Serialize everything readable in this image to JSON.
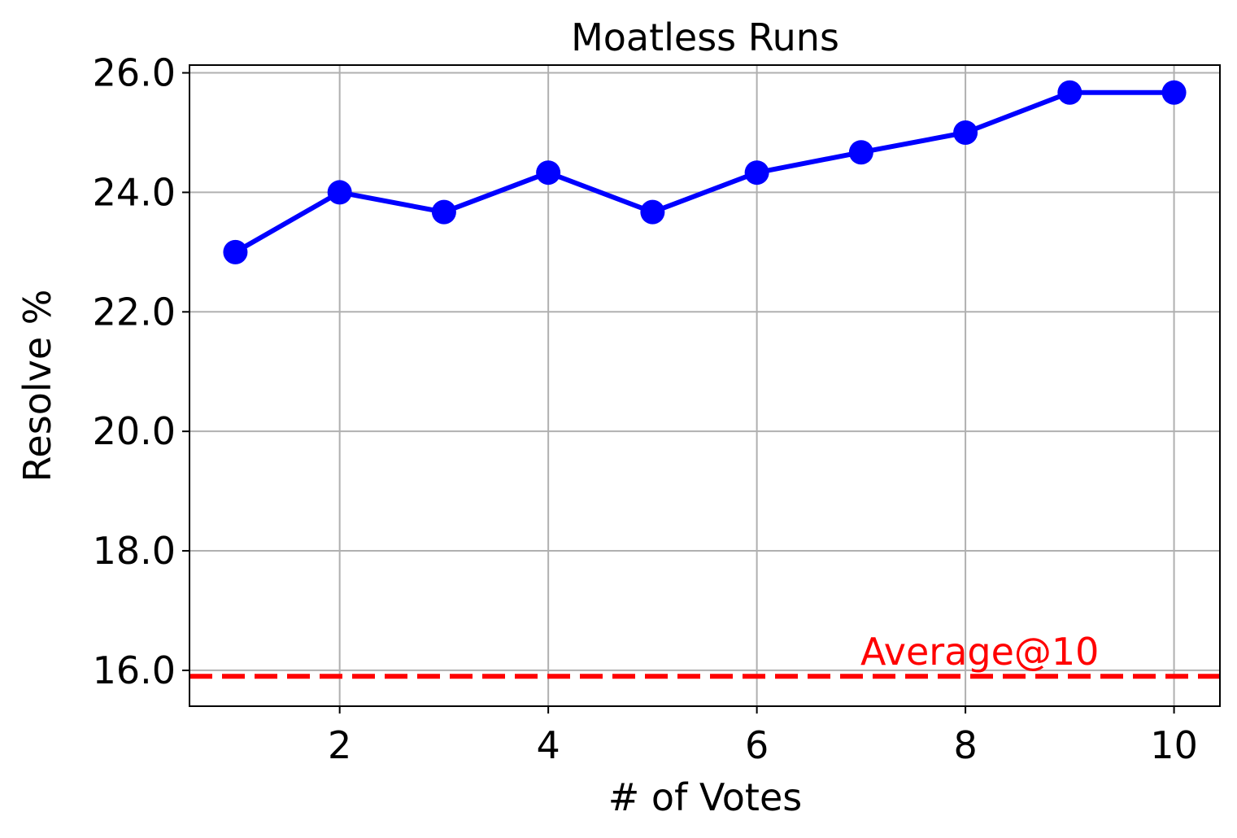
{
  "chart_data": {
    "type": "line",
    "title": "Moatless Runs",
    "xlabel": "# of Votes",
    "ylabel": "Resolve %",
    "xlim": [
      0.56,
      10.44
    ],
    "ylim": [
      15.4,
      26.13
    ],
    "x_ticks": [
      2,
      4,
      6,
      8,
      10
    ],
    "x_tick_labels": [
      "2",
      "4",
      "6",
      "8",
      "10"
    ],
    "y_ticks": [
      16,
      18,
      20,
      22,
      24,
      26
    ],
    "y_tick_labels": [
      "16.0",
      "18.0",
      "20.0",
      "22.0",
      "24.0",
      "26.0"
    ],
    "grid": true,
    "series": [
      {
        "color": "#0000ff",
        "marker": "circle",
        "x": [
          1,
          2,
          3,
          4,
          5,
          6,
          7,
          8,
          9,
          10
        ],
        "y": [
          23.0,
          24.0,
          23.67,
          24.33,
          23.67,
          24.33,
          24.67,
          25.0,
          25.67,
          25.67
        ]
      }
    ],
    "reference_line": {
      "label": "Average@10",
      "y": 15.9,
      "color": "#ff0000",
      "style": "dashed"
    }
  }
}
